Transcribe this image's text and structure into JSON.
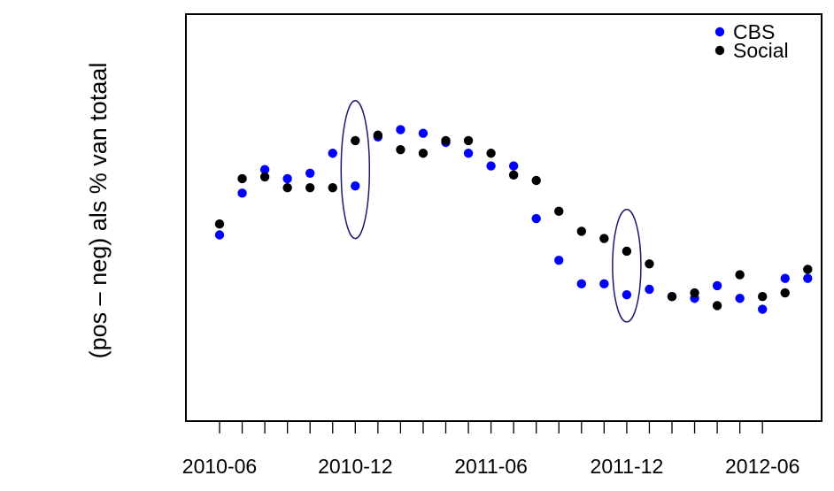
{
  "chart_data": {
    "type": "scatter",
    "title": "",
    "xlabel": "",
    "ylabel": "(pos – neg) als % van totaal",
    "x_tick_labels": [
      "2010-06",
      "2010-12",
      "2011-06",
      "2011-12",
      "2012-06"
    ],
    "x_ticks_all": [
      "2010-06",
      "2010-07",
      "2010-08",
      "2010-09",
      "2010-10",
      "2010-11",
      "2010-12",
      "2011-01",
      "2011-02",
      "2011-03",
      "2011-04",
      "2011-05",
      "2011-06",
      "2011-07",
      "2011-08",
      "2011-09",
      "2011-10",
      "2011-11",
      "2011-12",
      "2012-01",
      "2012-02",
      "2012-03",
      "2012-04",
      "2012-05",
      "2012-06"
    ],
    "y_ticks_shown": false,
    "ylim": [
      0,
      100
    ],
    "grid": false,
    "legend_position": "top-right",
    "series": [
      {
        "name": "CBS",
        "color": "#0000ff",
        "points": [
          {
            "x": "2010-06",
            "y": 45
          },
          {
            "x": "2010-07",
            "y": 56.5
          },
          {
            "x": "2010-08",
            "y": 63
          },
          {
            "x": "2010-09",
            "y": 60.5
          },
          {
            "x": "2010-10",
            "y": 62
          },
          {
            "x": "2010-11",
            "y": 67.5
          },
          {
            "x": "2010-12",
            "y": 58.5
          },
          {
            "x": "2011-01",
            "y": 72
          },
          {
            "x": "2011-02",
            "y": 74
          },
          {
            "x": "2011-03",
            "y": 73
          },
          {
            "x": "2011-04",
            "y": 70.5
          },
          {
            "x": "2011-05",
            "y": 67.5
          },
          {
            "x": "2011-06",
            "y": 64
          },
          {
            "x": "2011-07",
            "y": 64
          },
          {
            "x": "2011-08",
            "y": 49.5
          },
          {
            "x": "2011-09",
            "y": 38
          },
          {
            "x": "2011-10",
            "y": 31.5
          },
          {
            "x": "2011-11",
            "y": 31.5
          },
          {
            "x": "2011-12",
            "y": 28.5
          },
          {
            "x": "2012-01",
            "y": 30
          },
          {
            "x": "2012-02",
            "y": 28
          },
          {
            "x": "2012-03",
            "y": 27.5
          },
          {
            "x": "2012-04",
            "y": 31
          },
          {
            "x": "2012-05",
            "y": 27.5
          },
          {
            "x": "2012-06",
            "y": 24.5
          },
          {
            "x": "2012-07",
            "y": 33
          },
          {
            "x": "2012-08",
            "y": 33
          }
        ]
      },
      {
        "name": "Social",
        "color": "#000000",
        "points": [
          {
            "x": "2010-06",
            "y": 48
          },
          {
            "x": "2010-07",
            "y": 60.5
          },
          {
            "x": "2010-08",
            "y": 61
          },
          {
            "x": "2010-09",
            "y": 58
          },
          {
            "x": "2010-10",
            "y": 58
          },
          {
            "x": "2010-11",
            "y": 58
          },
          {
            "x": "2010-12",
            "y": 71
          },
          {
            "x": "2011-01",
            "y": 72.5
          },
          {
            "x": "2011-02",
            "y": 68.5
          },
          {
            "x": "2011-03",
            "y": 67.5
          },
          {
            "x": "2011-04",
            "y": 71
          },
          {
            "x": "2011-05",
            "y": 71
          },
          {
            "x": "2011-06",
            "y": 67.5
          },
          {
            "x": "2011-07",
            "y": 61.5
          },
          {
            "x": "2011-08",
            "y": 60
          },
          {
            "x": "2011-09",
            "y": 51.5
          },
          {
            "x": "2011-10",
            "y": 46
          },
          {
            "x": "2011-11",
            "y": 44
          },
          {
            "x": "2011-12",
            "y": 40.5
          },
          {
            "x": "2012-01",
            "y": 37
          },
          {
            "x": "2012-02",
            "y": 28
          },
          {
            "x": "2012-03",
            "y": 29
          },
          {
            "x": "2012-04",
            "y": 25.5
          },
          {
            "x": "2012-05",
            "y": 34
          },
          {
            "x": "2012-06",
            "y": 28
          },
          {
            "x": "2012-07",
            "y": 29
          },
          {
            "x": "2012-08",
            "y": 35.5
          }
        ]
      }
    ],
    "annotations": [
      {
        "type": "ellipse",
        "x": "2010-12",
        "y_range": [
          44,
          82
        ],
        "color": "#1a1a6e"
      },
      {
        "type": "ellipse",
        "x": "2011-12",
        "y_range": [
          21,
          52
        ],
        "color": "#1a1a6e"
      }
    ]
  }
}
